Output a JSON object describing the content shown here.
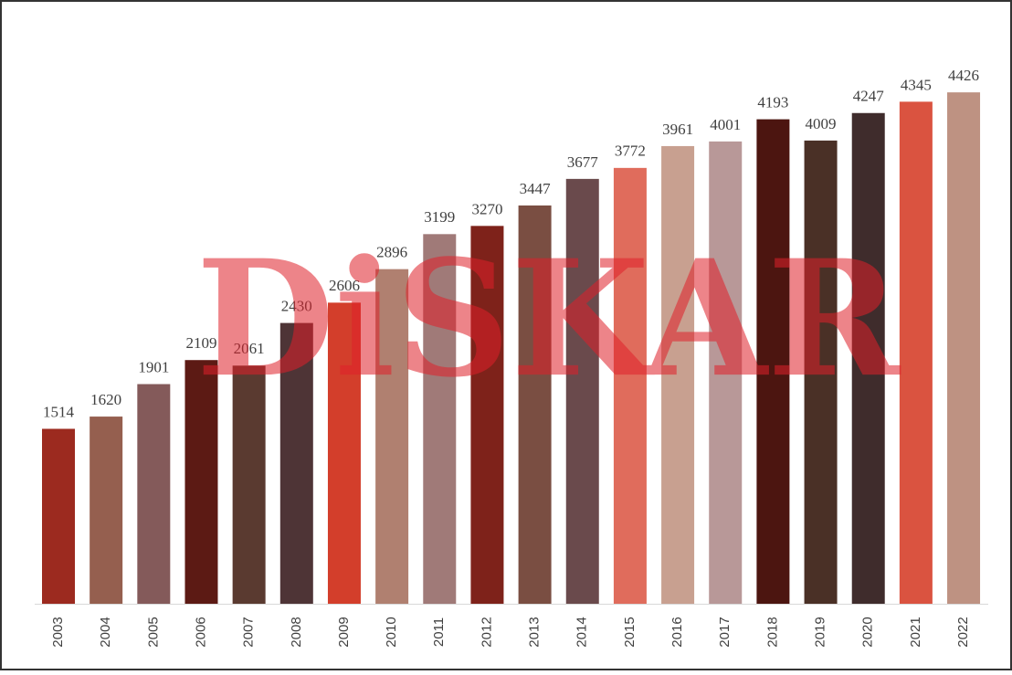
{
  "chart_data": {
    "type": "bar",
    "watermark": "DiSKAR",
    "categories": [
      "2003",
      "2004",
      "2005",
      "2006",
      "2007",
      "2008",
      "2009",
      "2010",
      "2011",
      "2012",
      "2013",
      "2014",
      "2015",
      "2016",
      "2017",
      "2018",
      "2019",
      "2020",
      "2021",
      "2022"
    ],
    "values": [
      1514,
      1620,
      1901,
      2109,
      2061,
      2430,
      2606,
      2896,
      3199,
      3270,
      3447,
      3677,
      3772,
      3961,
      4001,
      4193,
      4009,
      4247,
      4345,
      4426
    ],
    "colors": [
      "#9c2a1f",
      "#955f4f",
      "#845a5a",
      "#5c1a14",
      "#5a3a30",
      "#4e3436",
      "#d33e2b",
      "#b08070",
      "#a07a78",
      "#7e221a",
      "#7a4e42",
      "#6a4a4c",
      "#e06c5c",
      "#c8a090",
      "#b89898",
      "#4c1510",
      "#4a3026",
      "#3f2c2c",
      "#da5340",
      "#be9282"
    ],
    "ylim": [
      0,
      5000
    ]
  }
}
